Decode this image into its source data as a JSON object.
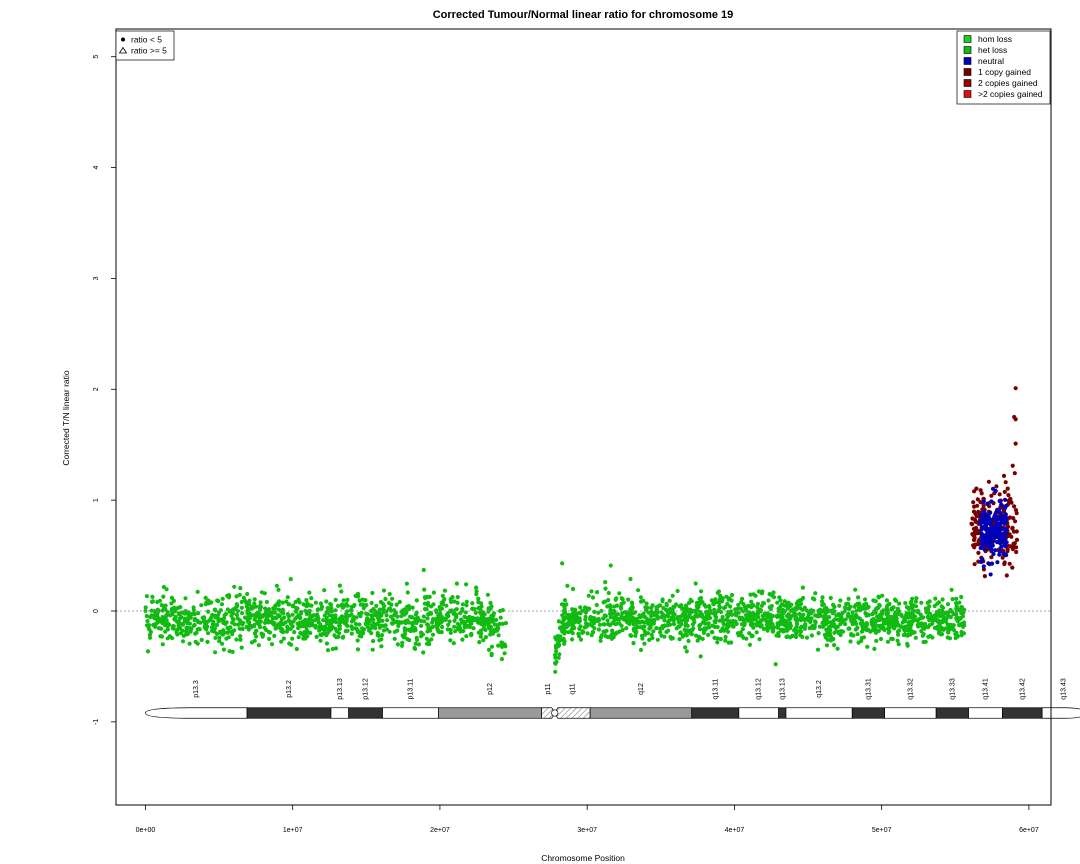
{
  "chart_data": {
    "type": "scatter",
    "title": "Corrected Tumour/Normal linear ratio for chromosome  19",
    "xlabel": "Chromosome Position",
    "ylabel": "Corrected T/N linear ratio",
    "xlim": [
      -2000000,
      61500000
    ],
    "ylim": [
      -1.75,
      5.25
    ],
    "x_ticks": [
      0,
      10000000,
      20000000,
      30000000,
      40000000,
      50000000,
      60000000
    ],
    "x_tick_labels": [
      "0e+00",
      "1e+07",
      "2e+07",
      "3e+07",
      "4e+07",
      "5e+07",
      "6e+07"
    ],
    "y_ticks": [
      -1,
      0,
      1,
      2,
      3,
      4,
      5
    ],
    "y_tick_labels": [
      "-1",
      "0",
      "1",
      "2",
      "3",
      "4",
      "5"
    ],
    "reference_line": 0,
    "shape_legend": {
      "placement": "top-left",
      "entries": [
        {
          "label": "ratio < 5",
          "shape": "filled-circle"
        },
        {
          "label": "ratio >= 5",
          "shape": "open-triangle"
        }
      ]
    },
    "legend": {
      "placement": "top-right",
      "entries": [
        {
          "label": "hom loss",
          "color": "#22cc22"
        },
        {
          "label": "het loss",
          "color": "#11bb11"
        },
        {
          "label": "neutral",
          "color": "#0000bb"
        },
        {
          "label": "1 copy gained",
          "color": "#7a0000"
        },
        {
          "label": "2 copies gained",
          "color": "#990000"
        },
        {
          "label": ">2 copies gained",
          "color": "#dd1111"
        }
      ]
    },
    "segments": [
      {
        "state": "het loss",
        "color": "#11bb11",
        "x_start": 0,
        "x_end": 24500000,
        "mean": -0.08,
        "sd": 0.11,
        "n": 1150,
        "end_drift": -0.18
      },
      {
        "state": "het loss",
        "color": "#11bb11",
        "x_start": 27800000,
        "x_end": 55700000,
        "mean": -0.07,
        "sd": 0.1,
        "n": 1500,
        "start_drift": -0.35
      },
      {
        "state": "1 copy gained",
        "color": "#7a0000",
        "x_start": 56100000,
        "x_end": 59200000,
        "mean": 0.78,
        "sd": 0.17,
        "n": 220
      },
      {
        "state": "neutral",
        "color": "#0000bb",
        "x_start": 56700000,
        "x_end": 58500000,
        "mean": 0.72,
        "sd": 0.12,
        "n": 170
      }
    ],
    "highlight_points": [
      {
        "x": 28300000,
        "y": 0.43,
        "state": "het loss"
      },
      {
        "x": 31600000,
        "y": 0.41,
        "state": "het loss"
      },
      {
        "x": 18900000,
        "y": 0.37,
        "state": "het loss"
      },
      {
        "x": 42800000,
        "y": -0.48,
        "state": "het loss"
      },
      {
        "x": 59100000,
        "y": 2.01,
        "state": "1 copy gained"
      },
      {
        "x": 59000000,
        "y": 1.75,
        "state": "1 copy gained"
      },
      {
        "x": 59100000,
        "y": 1.73,
        "state": "1 copy gained"
      },
      {
        "x": 59100000,
        "y": 1.51,
        "state": "1 copy gained"
      },
      {
        "x": 58900000,
        "y": 1.31,
        "state": "1 copy gained"
      },
      {
        "x": 58500000,
        "y": 0.32,
        "state": "1 copy gained"
      },
      {
        "x": 57400000,
        "y": 0.33,
        "state": "neutral"
      }
    ],
    "ideogram": {
      "centromere": 27800000,
      "bands": [
        {
          "name": "p13.3",
          "start": 0,
          "end": 6900000,
          "stain": "gneg"
        },
        {
          "name": "p13.2",
          "start": 6900000,
          "end": 12600000,
          "stain": "gpos"
        },
        {
          "name": "p13.13",
          "start": 12600000,
          "end": 13800000,
          "stain": "gneg"
        },
        {
          "name": "p13.12",
          "start": 13800000,
          "end": 16100000,
          "stain": "gpos"
        },
        {
          "name": "p13.11",
          "start": 16100000,
          "end": 19900000,
          "stain": "gneg"
        },
        {
          "name": "p12",
          "start": 19900000,
          "end": 26900000,
          "stain": "gvar"
        },
        {
          "name": "p11",
          "start": 26900000,
          "end": 27800000,
          "stain": "acen"
        },
        {
          "name": "q11",
          "start": 27800000,
          "end": 30200000,
          "stain": "acen"
        },
        {
          "name": "q12",
          "start": 30200000,
          "end": 37100000,
          "stain": "gvar"
        },
        {
          "name": "q13.11",
          "start": 37100000,
          "end": 40300000,
          "stain": "gpos"
        },
        {
          "name": "q13.12",
          "start": 40300000,
          "end": 43000000,
          "stain": "gneg"
        },
        {
          "name": "q13.13",
          "start": 43000000,
          "end": 43500000,
          "stain": "gpos"
        },
        {
          "name": "q13.2",
          "start": 43500000,
          "end": 48000000,
          "stain": "gneg"
        },
        {
          "name": "q13.31",
          "start": 48000000,
          "end": 50200000,
          "stain": "gpos"
        },
        {
          "name": "q13.32",
          "start": 50200000,
          "end": 53700000,
          "stain": "gneg"
        },
        {
          "name": "q13.33",
          "start": 53700000,
          "end": 55900000,
          "stain": "gpos"
        },
        {
          "name": "q13.41",
          "start": 55900000,
          "end": 58200000,
          "stain": "gneg"
        },
        {
          "name": "q13.42",
          "start": 58200000,
          "end": 60900000,
          "stain": "gpos"
        },
        {
          "name": "q13.43",
          "start": 60900000,
          "end": 63800000,
          "stain": "gneg"
        }
      ]
    }
  }
}
